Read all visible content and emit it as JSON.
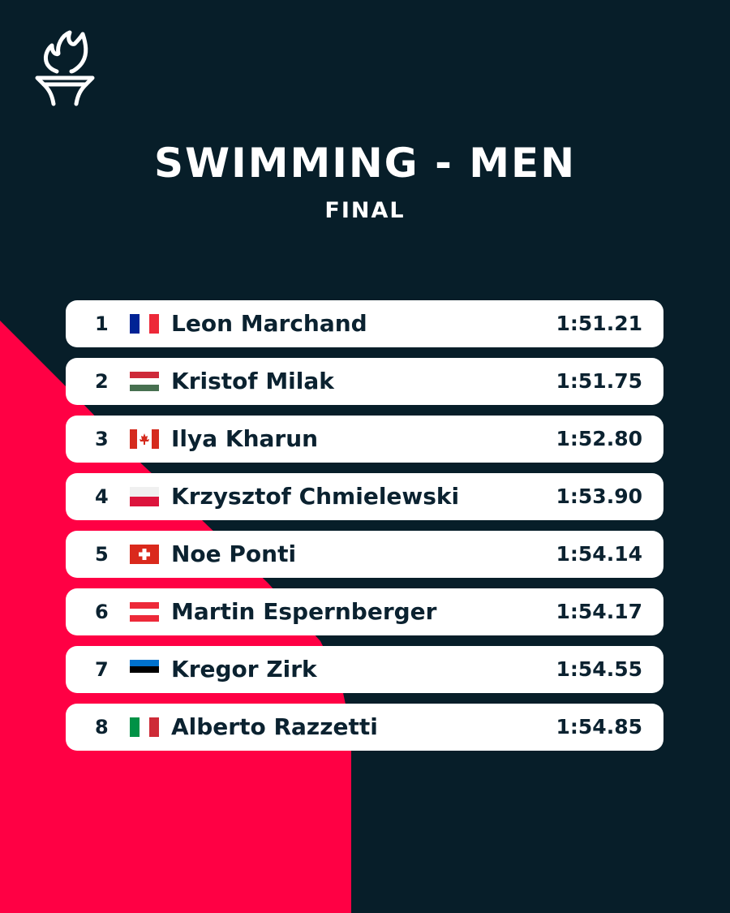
{
  "header": {
    "logo_icon": "olympic-torch-icon",
    "title": "SWIMMING - MEN",
    "subtitle": "FINAL"
  },
  "colors": {
    "background": "#071e29",
    "accent": "#ff0044",
    "card": "#ffffff",
    "text": "#0b2230"
  },
  "results": [
    {
      "rank": "1",
      "country": "France",
      "flag_icon": "france-flag-icon",
      "name": "Leon Marchand",
      "time": "1:51.21"
    },
    {
      "rank": "2",
      "country": "Hungary",
      "flag_icon": "hungary-flag-icon",
      "name": "Kristof Milak",
      "time": "1:51.75"
    },
    {
      "rank": "3",
      "country": "Canada",
      "flag_icon": "canada-flag-icon",
      "name": "Ilya Kharun",
      "time": "1:52.80"
    },
    {
      "rank": "4",
      "country": "Poland",
      "flag_icon": "poland-flag-icon",
      "name": "Krzysztof Chmielewski",
      "time": "1:53.90"
    },
    {
      "rank": "5",
      "country": "Switzerland",
      "flag_icon": "switzerland-flag-icon",
      "name": "Noe Ponti",
      "time": "1:54.14"
    },
    {
      "rank": "6",
      "country": "Austria",
      "flag_icon": "austria-flag-icon",
      "name": "Martin Espernberger",
      "time": "1:54.17"
    },
    {
      "rank": "7",
      "country": "Estonia",
      "flag_icon": "estonia-flag-icon",
      "name": "Kregor Zirk",
      "time": "1:54.55"
    },
    {
      "rank": "8",
      "country": "Italy",
      "flag_icon": "italy-flag-icon",
      "name": "Alberto Razzetti",
      "time": "1:54.85"
    }
  ]
}
